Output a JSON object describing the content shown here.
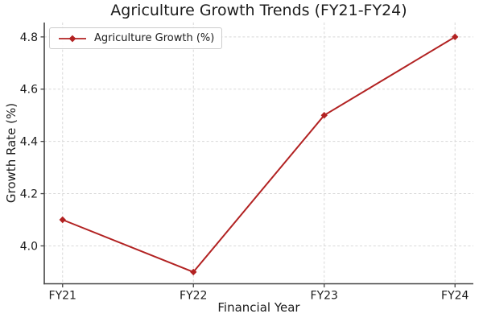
{
  "figure": {
    "background": "#ffffff"
  },
  "chart_data": {
    "type": "line",
    "title": "Agriculture Growth Trends (FY21-FY24)",
    "xlabel": "Financial Year",
    "ylabel": "Growth Rate (%)",
    "categories": [
      "FY21",
      "FY22",
      "FY23",
      "FY24"
    ],
    "series": [
      {
        "name": "Agriculture Growth (%)",
        "values": [
          4.1,
          3.9,
          4.5,
          4.8
        ],
        "color": "#b22222",
        "marker": "diamond",
        "linewidth": 2
      }
    ],
    "yticks": [
      4.0,
      4.2,
      4.4,
      4.6,
      4.8
    ],
    "ylim": [
      3.855,
      4.855
    ],
    "xlim": [
      -0.14,
      3.14
    ],
    "grid": true,
    "grid_linestyle": "dashed",
    "legend_position": "upper-left",
    "colors": {
      "line": "#b22222",
      "grid": "#d8d8d8",
      "spine": "#454545",
      "text": "#1c1c1c"
    }
  }
}
